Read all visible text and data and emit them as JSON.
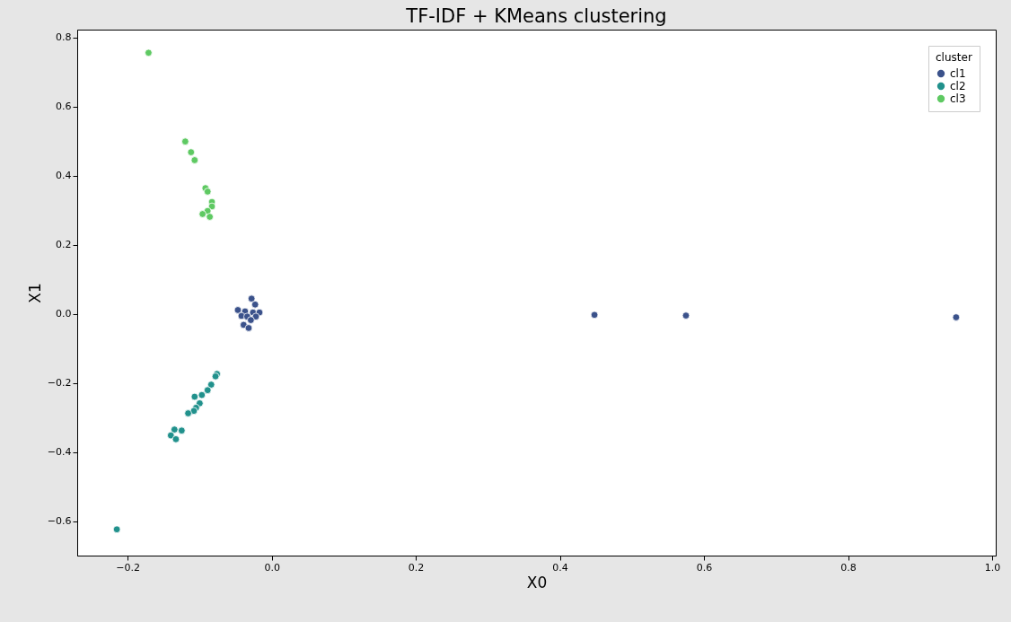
{
  "chart_data": {
    "type": "scatter",
    "title": "TF-IDF + KMeans clustering",
    "xlabel": "X0",
    "ylabel": "X1",
    "legend_title": "cluster",
    "legend": "top right",
    "grid": false,
    "marker": "circle",
    "xlim": [
      -0.27,
      1.005
    ],
    "ylim": [
      -0.7,
      0.823
    ],
    "xticks": [
      {
        "value": -0.2,
        "label": "−0.2"
      },
      {
        "value": 0,
        "label": "0.0"
      },
      {
        "value": 0.2,
        "label": "0.2"
      },
      {
        "value": 0.4,
        "label": "0.4"
      },
      {
        "value": 0.6,
        "label": "0.6"
      },
      {
        "value": 0.8,
        "label": "0.8"
      },
      {
        "value": 1,
        "label": "1.0"
      }
    ],
    "yticks": [
      {
        "value": -0.6,
        "label": "−0.6"
      },
      {
        "value": -0.4,
        "label": "−0.4"
      },
      {
        "value": -0.2,
        "label": "−0.2"
      },
      {
        "value": 0,
        "label": "0.0"
      },
      {
        "value": 0.2,
        "label": "0.2"
      },
      {
        "value": 0.4,
        "label": "0.4"
      },
      {
        "value": 0.6,
        "label": "0.6"
      },
      {
        "value": 0.8,
        "label": "0.8"
      }
    ],
    "series": [
      {
        "name": "cl1",
        "color": "#3b528b",
        "x": [
          -0.028,
          -0.023,
          -0.047,
          -0.037,
          -0.026,
          -0.017,
          -0.042,
          -0.034,
          -0.022,
          -0.029,
          -0.039,
          -0.032,
          0.448,
          0.575,
          0.95
        ],
        "values": [
          0.044,
          0.027,
          0.011,
          0.007,
          0.004,
          0.004,
          -0.006,
          -0.008,
          -0.008,
          -0.018,
          -0.032,
          -0.041,
          -0.003,
          -0.005,
          -0.01
        ]
      },
      {
        "name": "cl2",
        "color": "#21918c",
        "x": [
          -0.076,
          -0.078,
          -0.084,
          -0.089,
          -0.097,
          -0.107,
          -0.1,
          -0.105,
          -0.108,
          -0.116,
          -0.125,
          -0.135,
          -0.14,
          -0.133,
          -0.215
        ],
        "values": [
          -0.174,
          -0.181,
          -0.205,
          -0.221,
          -0.235,
          -0.24,
          -0.259,
          -0.272,
          -0.281,
          -0.288,
          -0.338,
          -0.335,
          -0.352,
          -0.363,
          -0.624
        ]
      },
      {
        "name": "cl3",
        "color": "#5ec962",
        "x": [
          -0.171,
          -0.12,
          -0.112,
          -0.107,
          -0.092,
          -0.089,
          -0.083,
          -0.083,
          -0.089,
          -0.096,
          -0.086
        ],
        "values": [
          0.756,
          0.499,
          0.468,
          0.445,
          0.364,
          0.354,
          0.324,
          0.311,
          0.298,
          0.289,
          0.281
        ]
      }
    ]
  }
}
